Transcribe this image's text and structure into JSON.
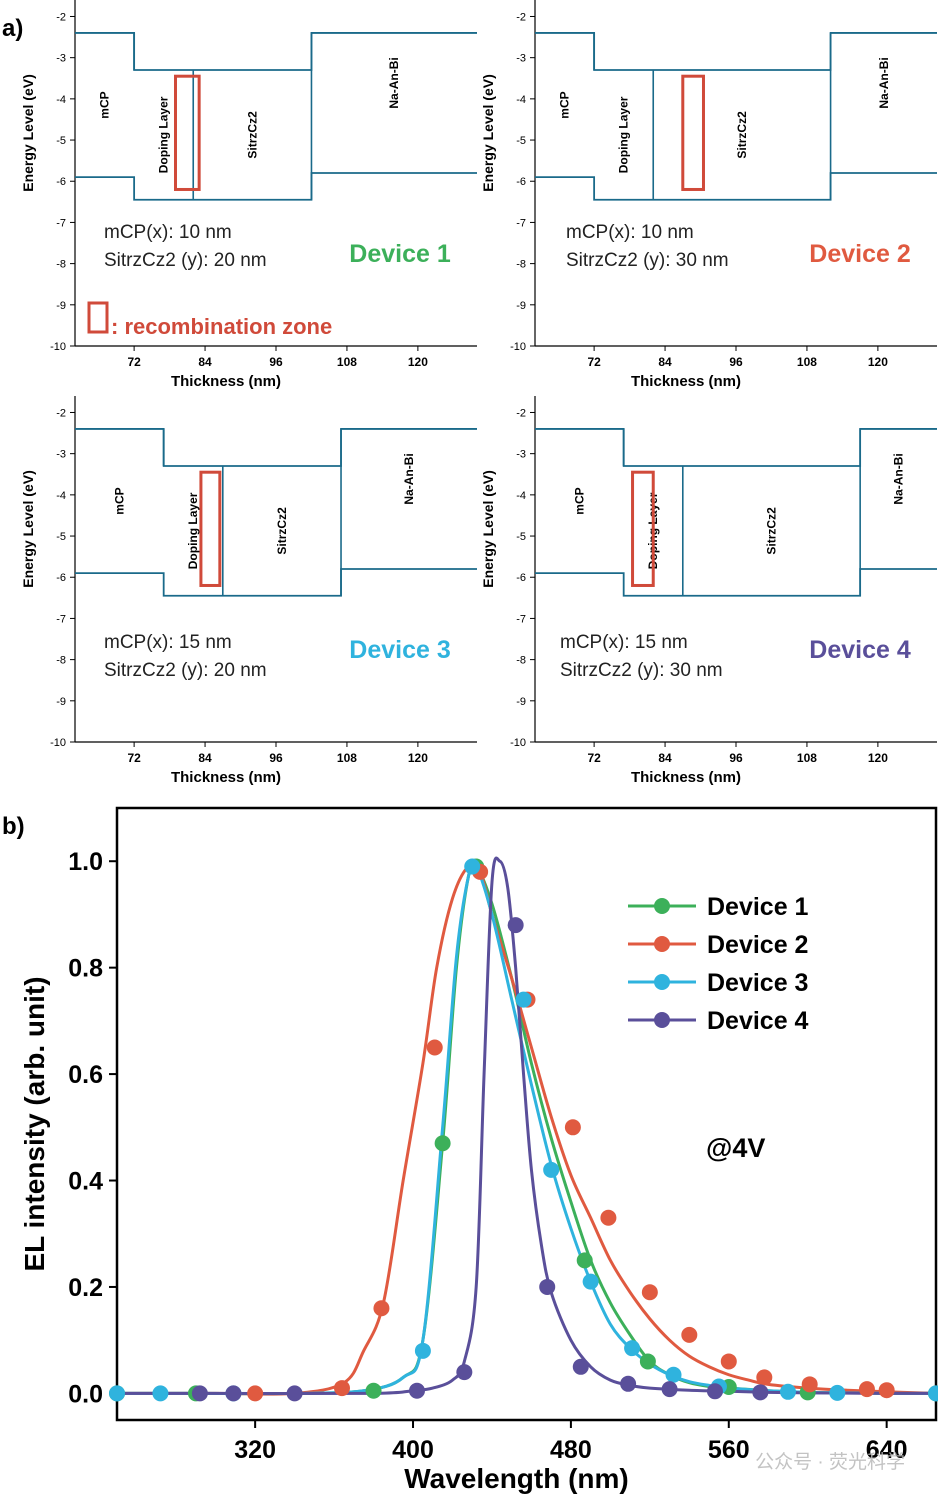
{
  "figure": {
    "panel_a_label": "a)",
    "panel_b_label": "b)",
    "watermark": "公众号 · 荧光科学"
  },
  "colors": {
    "band": "#1a6a8a",
    "zone": "#d04a3a",
    "device1": "#3cb05a",
    "device2": "#e05a40",
    "device3": "#2fb3de",
    "device4": "#5a4f9a",
    "axis": "#000000"
  },
  "chart_data": [
    {
      "type": "energy-level-diagram",
      "device": "Device 1",
      "xlabel": "Thickness (nm)",
      "ylabel": "Energy Level (eV)",
      "xticks": [
        "72",
        "84",
        "96",
        "108",
        "120"
      ],
      "yticks": [
        "-2",
        "-3",
        "-4",
        "-5",
        "-6",
        "-7",
        "-8",
        "-9",
        "-10"
      ],
      "xlim": [
        62,
        130
      ],
      "ylim": [
        -10,
        -1.6
      ],
      "layers": [
        {
          "name": "mCP",
          "x0": 62,
          "x1": 72,
          "lumo": -2.4,
          "homo": -5.9
        },
        {
          "name": "Doping Layer",
          "x0": 72,
          "x1": 82,
          "lumo": -3.3,
          "homo": -6.45
        },
        {
          "name": "SitrzCz2",
          "x0": 82,
          "x1": 102,
          "lumo": -3.3,
          "homo": -6.45
        },
        {
          "name": "Na-An-Bi",
          "x0": 102,
          "x1": 130,
          "lumo": -2.4,
          "homo": -5.8
        }
      ],
      "zone": [
        79,
        83,
        -3.45,
        -6.2
      ],
      "info_lines": [
        "mCP(x): 10 nm",
        "SitrzCz2 (y): 20 nm"
      ],
      "legend_note": ": recombination zone"
    },
    {
      "type": "energy-level-diagram",
      "device": "Device 2",
      "xlabel": "Thickness (nm)",
      "ylabel": "Energy Level (eV)",
      "xticks": [
        "72",
        "84",
        "96",
        "108",
        "120"
      ],
      "yticks": [
        "-2",
        "-3",
        "-4",
        "-5",
        "-6",
        "-7",
        "-8",
        "-9",
        "-10"
      ],
      "xlim": [
        62,
        130
      ],
      "ylim": [
        -10,
        -1.6
      ],
      "layers": [
        {
          "name": "mCP",
          "x0": 62,
          "x1": 72,
          "lumo": -2.4,
          "homo": -5.9
        },
        {
          "name": "Doping Layer",
          "x0": 72,
          "x1": 82,
          "lumo": -3.3,
          "homo": -6.45
        },
        {
          "name": "SitrzCz2",
          "x0": 82,
          "x1": 112,
          "lumo": -3.3,
          "homo": -6.45
        },
        {
          "name": "Na-An-Bi",
          "x0": 112,
          "x1": 130,
          "lumo": -2.4,
          "homo": -5.8
        }
      ],
      "zone": [
        87,
        90.5,
        -3.45,
        -6.2
      ],
      "info_lines": [
        "mCP(x): 10 nm",
        "SitrzCz2 (y): 30 nm"
      ]
    },
    {
      "type": "energy-level-diagram",
      "device": "Device 3",
      "xlabel": "Thickness (nm)",
      "ylabel": "Energy Level (eV)",
      "xticks": [
        "72",
        "84",
        "96",
        "108",
        "120"
      ],
      "yticks": [
        "-2",
        "-3",
        "-4",
        "-5",
        "-6",
        "-7",
        "-8",
        "-9",
        "-10"
      ],
      "xlim": [
        62,
        130
      ],
      "ylim": [
        -10,
        -1.6
      ],
      "layers": [
        {
          "name": "mCP",
          "x0": 62,
          "x1": 77,
          "lumo": -2.4,
          "homo": -5.9
        },
        {
          "name": "Doping Layer",
          "x0": 77,
          "x1": 87,
          "lumo": -3.3,
          "homo": -6.45
        },
        {
          "name": "SitrzCz2",
          "x0": 87,
          "x1": 107,
          "lumo": -3.3,
          "homo": -6.45
        },
        {
          "name": "Na-An-Bi",
          "x0": 107,
          "x1": 130,
          "lumo": -2.4,
          "homo": -5.8
        }
      ],
      "zone": [
        83.3,
        86.5,
        -3.45,
        -6.2
      ],
      "info_lines": [
        "mCP(x): 15 nm",
        "SitrzCz2 (y): 20 nm"
      ]
    },
    {
      "type": "energy-level-diagram",
      "device": "Device 4",
      "xlabel": "Thickness (nm)",
      "ylabel": "Energy Level (eV)",
      "xticks": [
        "72",
        "84",
        "96",
        "108",
        "120"
      ],
      "yticks": [
        "-2",
        "-3",
        "-4",
        "-5",
        "-6",
        "-7",
        "-8",
        "-9",
        "-10"
      ],
      "xlim": [
        62,
        130
      ],
      "ylim": [
        -10,
        -1.6
      ],
      "layers": [
        {
          "name": "mCP",
          "x0": 62,
          "x1": 77,
          "lumo": -2.4,
          "homo": -5.9
        },
        {
          "name": "Doping Layer",
          "x0": 77,
          "x1": 87,
          "lumo": -3.3,
          "homo": -6.45
        },
        {
          "name": "SitrzCz2",
          "x0": 87,
          "x1": 117,
          "lumo": -3.3,
          "homo": -6.45
        },
        {
          "name": "Na-An-Bi",
          "x0": 117,
          "x1": 130,
          "lumo": -2.4,
          "homo": -5.8
        }
      ],
      "zone": [
        78.5,
        82,
        -3.45,
        -6.2
      ],
      "info_lines": [
        "mCP(x): 15 nm",
        "SitrzCz2 (y): 30 nm"
      ]
    },
    {
      "type": "line",
      "xlabel": "Wavelength (nm)",
      "ylabel": "EL intensity (arb. unit)",
      "xlim": [
        250,
        665
      ],
      "ylim": [
        -0.05,
        1.1
      ],
      "xticks": [
        "320",
        "400",
        "480",
        "560",
        "640"
      ],
      "yticks": [
        "0.0",
        "0.2",
        "0.4",
        "0.6",
        "0.8",
        "1.0"
      ],
      "annotation": "@4V",
      "series": [
        {
          "name": "Device 1",
          "x": [
            250,
            290,
            340,
            375,
            395,
            405,
            415,
            422,
            428,
            432,
            440,
            450,
            460,
            470,
            480,
            490,
            500,
            510,
            520,
            530,
            540,
            550,
            560,
            580,
            600,
            620,
            640,
            665
          ],
          "y": [
            0,
            0,
            0,
            0.005,
            0.03,
            0.1,
            0.47,
            0.8,
            0.97,
            0.99,
            0.92,
            0.78,
            0.62,
            0.48,
            0.36,
            0.25,
            0.17,
            0.11,
            0.06,
            0.035,
            0.02,
            0.013,
            0.01,
            0.005,
            0.002,
            0.001,
            0,
            0
          ],
          "markers": [
            [
              250,
              0
            ],
            [
              290,
              0
            ],
            [
              380,
              0.005
            ],
            [
              415,
              0.47
            ],
            [
              432,
              0.99
            ],
            [
              487,
              0.25
            ],
            [
              519,
              0.06
            ],
            [
              560,
              0.012
            ],
            [
              600,
              0.002
            ],
            [
              665,
              0
            ]
          ]
        },
        {
          "name": "Device 2",
          "x": [
            250,
            300,
            340,
            365,
            375,
            385,
            395,
            405,
            412,
            420,
            428,
            434,
            440,
            450,
            460,
            470,
            480,
            490,
            500,
            510,
            520,
            530,
            540,
            550,
            560,
            570,
            580,
            600,
            620,
            640,
            665
          ],
          "y": [
            0,
            0,
            0,
            0.02,
            0.08,
            0.17,
            0.4,
            0.62,
            0.8,
            0.93,
            0.99,
            0.98,
            0.9,
            0.78,
            0.65,
            0.52,
            0.41,
            0.33,
            0.25,
            0.19,
            0.14,
            0.1,
            0.07,
            0.05,
            0.035,
            0.025,
            0.017,
            0.01,
            0.006,
            0.003,
            0
          ],
          "markers": [
            [
              320,
              0
            ],
            [
              364,
              0.01
            ],
            [
              384,
              0.16
            ],
            [
              411,
              0.65
            ],
            [
              434,
              0.98
            ],
            [
              458,
              0.74
            ],
            [
              481,
              0.5
            ],
            [
              499,
              0.33
            ],
            [
              520,
              0.19
            ],
            [
              540,
              0.11
            ],
            [
              560,
              0.06
            ],
            [
              578,
              0.03
            ],
            [
              601,
              0.017
            ],
            [
              630,
              0.008
            ],
            [
              640,
              0.006
            ]
          ]
        },
        {
          "name": "Device 3",
          "x": [
            250,
            290,
            340,
            375,
            395,
            405,
            415,
            422,
            428,
            432,
            440,
            450,
            460,
            470,
            480,
            490,
            500,
            510,
            520,
            530,
            540,
            550,
            560,
            580,
            600,
            620,
            640,
            665
          ],
          "y": [
            0,
            0,
            0,
            0.005,
            0.03,
            0.1,
            0.5,
            0.82,
            0.97,
            0.99,
            0.9,
            0.74,
            0.58,
            0.43,
            0.31,
            0.21,
            0.13,
            0.085,
            0.055,
            0.035,
            0.022,
            0.015,
            0.01,
            0.005,
            0.002,
            0.001,
            0,
            0
          ],
          "markers": [
            [
              250,
              0
            ],
            [
              272,
              0
            ],
            [
              309,
              0
            ],
            [
              405,
              0.08
            ],
            [
              430,
              0.99
            ],
            [
              456,
              0.74
            ],
            [
              470,
              0.42
            ],
            [
              490,
              0.21
            ],
            [
              511,
              0.085
            ],
            [
              532,
              0.035
            ],
            [
              555,
              0.013
            ],
            [
              590,
              0.003
            ],
            [
              615,
              0.001
            ],
            [
              665,
              0
            ]
          ]
        },
        {
          "name": "Device 4",
          "x": [
            250,
            300,
            380,
            400,
            410,
            420,
            426,
            432,
            436,
            440,
            444,
            448,
            452,
            456,
            460,
            465,
            470,
            480,
            490,
            500,
            510,
            520,
            540,
            560,
            580,
            600,
            620,
            640,
            665
          ],
          "y": [
            0,
            0,
            0,
            0.005,
            0.01,
            0.025,
            0.06,
            0.2,
            0.6,
            0.96,
            1.0,
            0.95,
            0.8,
            0.6,
            0.42,
            0.28,
            0.19,
            0.1,
            0.05,
            0.025,
            0.015,
            0.01,
            0.006,
            0.004,
            0.002,
            0.001,
            0.0005,
            0,
            0
          ],
          "markers": [
            [
              292,
              0
            ],
            [
              309,
              0
            ],
            [
              340,
              0
            ],
            [
              402,
              0.005
            ],
            [
              426,
              0.04
            ],
            [
              452,
              0.88
            ],
            [
              468,
              0.2
            ],
            [
              485,
              0.05
            ],
            [
              509,
              0.018
            ],
            [
              530,
              0.008
            ],
            [
              553,
              0.004
            ],
            [
              576,
              0.002
            ]
          ]
        }
      ]
    }
  ]
}
